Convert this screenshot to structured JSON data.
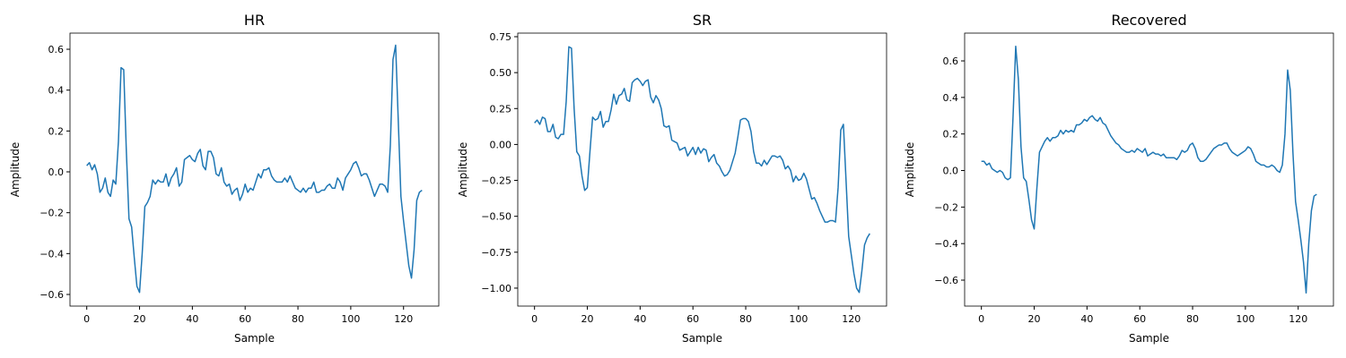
{
  "chart_data": [
    {
      "type": "line",
      "title": "HR",
      "xlabel": "Sample",
      "ylabel": "Amplitude",
      "x": [
        0,
        1,
        2,
        3,
        4,
        5,
        6,
        7,
        8,
        9,
        10,
        11,
        12,
        13,
        14,
        15,
        16,
        17,
        18,
        19,
        20,
        21,
        22,
        23,
        24,
        25,
        26,
        27,
        28,
        29,
        30,
        31,
        32,
        33,
        34,
        35,
        36,
        37,
        38,
        39,
        40,
        41,
        42,
        43,
        44,
        45,
        46,
        47,
        48,
        49,
        50,
        51,
        52,
        53,
        54,
        55,
        56,
        57,
        58,
        59,
        60,
        61,
        62,
        63,
        64,
        65,
        66,
        67,
        68,
        69,
        70,
        71,
        72,
        73,
        74,
        75,
        76,
        77,
        78,
        79,
        80,
        81,
        82,
        83,
        84,
        85,
        86,
        87,
        88,
        89,
        90,
        91,
        92,
        93,
        94,
        95,
        96,
        97,
        98,
        99,
        100,
        101,
        102,
        103,
        104,
        105,
        106,
        107,
        108,
        109,
        110,
        111,
        112,
        113,
        114,
        115,
        116,
        117,
        118,
        119,
        120,
        121,
        122,
        123,
        124,
        125,
        126,
        127
      ],
      "series": [
        {
          "color": "#1f77b4",
          "values": [
            0.03,
            0.045,
            0.01,
            0.035,
            -0.01,
            -0.1,
            -0.08,
            -0.03,
            -0.1,
            -0.12,
            -0.04,
            -0.06,
            0.15,
            0.51,
            0.5,
            0.1,
            -0.23,
            -0.27,
            -0.42,
            -0.56,
            -0.59,
            -0.4,
            -0.17,
            -0.15,
            -0.12,
            -0.04,
            -0.06,
            -0.04,
            -0.05,
            -0.05,
            -0.01,
            -0.07,
            -0.03,
            -0.01,
            0.02,
            -0.07,
            -0.05,
            0.06,
            0.07,
            0.08,
            0.06,
            0.05,
            0.09,
            0.11,
            0.03,
            0.01,
            0.1,
            0.1,
            0.07,
            -0.01,
            -0.02,
            0.02,
            -0.05,
            -0.07,
            -0.06,
            -0.11,
            -0.09,
            -0.08,
            -0.14,
            -0.11,
            -0.06,
            -0.1,
            -0.08,
            -0.09,
            -0.05,
            -0.01,
            -0.03,
            0.01,
            0.01,
            0.02,
            -0.02,
            -0.04,
            -0.05,
            -0.05,
            -0.05,
            -0.03,
            -0.05,
            -0.02,
            -0.05,
            -0.08,
            -0.09,
            -0.1,
            -0.08,
            -0.1,
            -0.08,
            -0.08,
            -0.05,
            -0.1,
            -0.1,
            -0.09,
            -0.09,
            -0.07,
            -0.06,
            -0.08,
            -0.08,
            -0.03,
            -0.05,
            -0.09,
            -0.03,
            -0.01,
            0.01,
            0.04,
            0.05,
            0.02,
            -0.02,
            -0.01,
            -0.01,
            -0.04,
            -0.08,
            -0.12,
            -0.09,
            -0.06,
            -0.06,
            -0.07,
            -0.1,
            0.13,
            0.55,
            0.62,
            0.25,
            -0.12,
            -0.24,
            -0.35,
            -0.46,
            -0.52,
            -0.38,
            -0.14,
            -0.1,
            -0.09
          ]
        }
      ],
      "xlim": [
        -6.35,
        133.35
      ],
      "ylim": [
        -0.657,
        0.679
      ],
      "xticks": [
        0,
        20,
        40,
        60,
        80,
        100,
        120
      ],
      "yticks": [
        {
          "value": -0.6,
          "label": "−0.6"
        },
        {
          "value": -0.4,
          "label": "−0.4"
        },
        {
          "value": -0.2,
          "label": "−0.2"
        },
        {
          "value": 0,
          "label": "0.0"
        },
        0.2,
        0.4,
        0.6
      ]
    },
    {
      "type": "line",
      "title": "SR",
      "xlabel": "Sample",
      "ylabel": "Amplitude",
      "x": [
        0,
        1,
        2,
        3,
        4,
        5,
        6,
        7,
        8,
        9,
        10,
        11,
        12,
        13,
        14,
        15,
        16,
        17,
        18,
        19,
        20,
        21,
        22,
        23,
        24,
        25,
        26,
        27,
        28,
        29,
        30,
        31,
        32,
        33,
        34,
        35,
        36,
        37,
        38,
        39,
        40,
        41,
        42,
        43,
        44,
        45,
        46,
        47,
        48,
        49,
        50,
        51,
        52,
        53,
        54,
        55,
        56,
        57,
        58,
        59,
        60,
        61,
        62,
        63,
        64,
        65,
        66,
        67,
        68,
        69,
        70,
        71,
        72,
        73,
        74,
        75,
        76,
        77,
        78,
        79,
        80,
        81,
        82,
        83,
        84,
        85,
        86,
        87,
        88,
        89,
        90,
        91,
        92,
        93,
        94,
        95,
        96,
        97,
        98,
        99,
        100,
        101,
        102,
        103,
        104,
        105,
        106,
        107,
        108,
        109,
        110,
        111,
        112,
        113,
        114,
        115,
        116,
        117,
        118,
        119,
        120,
        121,
        122,
        123,
        124,
        125,
        126,
        127
      ],
      "series": [
        {
          "color": "#1f77b4",
          "values": [
            0.15,
            0.17,
            0.14,
            0.19,
            0.18,
            0.09,
            0.09,
            0.14,
            0.05,
            0.04,
            0.07,
            0.07,
            0.3,
            0.68,
            0.67,
            0.25,
            -0.05,
            -0.08,
            -0.22,
            -0.32,
            -0.3,
            -0.05,
            0.19,
            0.17,
            0.18,
            0.23,
            0.12,
            0.16,
            0.16,
            0.24,
            0.35,
            0.28,
            0.34,
            0.35,
            0.39,
            0.31,
            0.3,
            0.43,
            0.45,
            0.46,
            0.44,
            0.41,
            0.44,
            0.45,
            0.33,
            0.29,
            0.34,
            0.31,
            0.25,
            0.13,
            0.12,
            0.13,
            0.03,
            0.02,
            0.01,
            -0.04,
            -0.03,
            -0.02,
            -0.08,
            -0.05,
            -0.02,
            -0.07,
            -0.02,
            -0.06,
            -0.03,
            -0.04,
            -0.12,
            -0.09,
            -0.07,
            -0.13,
            -0.15,
            -0.19,
            -0.22,
            -0.21,
            -0.18,
            -0.12,
            -0.06,
            0.05,
            0.17,
            0.18,
            0.18,
            0.16,
            0.09,
            -0.05,
            -0.13,
            -0.13,
            -0.15,
            -0.11,
            -0.14,
            -0.11,
            -0.08,
            -0.08,
            -0.09,
            -0.08,
            -0.11,
            -0.17,
            -0.15,
            -0.18,
            -0.26,
            -0.22,
            -0.25,
            -0.24,
            -0.2,
            -0.24,
            -0.31,
            -0.38,
            -0.37,
            -0.41,
            -0.46,
            -0.5,
            -0.54,
            -0.54,
            -0.53,
            -0.53,
            -0.54,
            -0.3,
            0.1,
            0.14,
            -0.25,
            -0.64,
            -0.77,
            -0.9,
            -1.0,
            -1.03,
            -0.88,
            -0.7,
            -0.65,
            -0.62
          ]
        }
      ],
      "xlim": [
        -6.35,
        133.35
      ],
      "ylim": [
        -1.125,
        0.775
      ],
      "xticks": [
        0,
        20,
        40,
        60,
        80,
        100,
        120
      ],
      "yticks": [
        {
          "value": -1,
          "label": "−1.00"
        },
        {
          "value": -0.75,
          "label": "−0.75"
        },
        {
          "value": -0.5,
          "label": "−0.50"
        },
        {
          "value": -0.25,
          "label": "−0.25"
        },
        {
          "value": 0,
          "label": "0.00"
        },
        0.25,
        {
          "value": 0.5,
          "label": "0.50"
        },
        0.75
      ]
    },
    {
      "type": "line",
      "title": "Recovered",
      "xlabel": "Sample",
      "ylabel": "Amplitude",
      "x": [
        0,
        1,
        2,
        3,
        4,
        5,
        6,
        7,
        8,
        9,
        10,
        11,
        12,
        13,
        14,
        15,
        16,
        17,
        18,
        19,
        20,
        21,
        22,
        23,
        24,
        25,
        26,
        27,
        28,
        29,
        30,
        31,
        32,
        33,
        34,
        35,
        36,
        37,
        38,
        39,
        40,
        41,
        42,
        43,
        44,
        45,
        46,
        47,
        48,
        49,
        50,
        51,
        52,
        53,
        54,
        55,
        56,
        57,
        58,
        59,
        60,
        61,
        62,
        63,
        64,
        65,
        66,
        67,
        68,
        69,
        70,
        71,
        72,
        73,
        74,
        75,
        76,
        77,
        78,
        79,
        80,
        81,
        82,
        83,
        84,
        85,
        86,
        87,
        88,
        89,
        90,
        91,
        92,
        93,
        94,
        95,
        96,
        97,
        98,
        99,
        100,
        101,
        102,
        103,
        104,
        105,
        106,
        107,
        108,
        109,
        110,
        111,
        112,
        113,
        114,
        115,
        116,
        117,
        118,
        119,
        120,
        121,
        122,
        123,
        124,
        125,
        126,
        127
      ],
      "series": [
        {
          "color": "#1f77b4",
          "values": [
            0.05,
            0.05,
            0.03,
            0.04,
            0.01,
            0.0,
            -0.01,
            0.0,
            -0.01,
            -0.04,
            -0.05,
            -0.04,
            0.3,
            0.68,
            0.5,
            0.13,
            -0.04,
            -0.06,
            -0.16,
            -0.27,
            -0.32,
            -0.1,
            0.1,
            0.13,
            0.16,
            0.18,
            0.16,
            0.18,
            0.18,
            0.19,
            0.22,
            0.2,
            0.22,
            0.21,
            0.22,
            0.21,
            0.25,
            0.25,
            0.26,
            0.28,
            0.27,
            0.29,
            0.3,
            0.28,
            0.27,
            0.29,
            0.26,
            0.25,
            0.22,
            0.19,
            0.17,
            0.15,
            0.14,
            0.12,
            0.11,
            0.1,
            0.1,
            0.11,
            0.1,
            0.12,
            0.11,
            0.1,
            0.12,
            0.08,
            0.09,
            0.1,
            0.09,
            0.09,
            0.08,
            0.09,
            0.07,
            0.07,
            0.07,
            0.07,
            0.06,
            0.08,
            0.11,
            0.1,
            0.11,
            0.14,
            0.15,
            0.12,
            0.07,
            0.05,
            0.05,
            0.06,
            0.08,
            0.1,
            0.12,
            0.13,
            0.14,
            0.14,
            0.15,
            0.15,
            0.12,
            0.1,
            0.09,
            0.08,
            0.09,
            0.1,
            0.11,
            0.13,
            0.12,
            0.09,
            0.05,
            0.04,
            0.03,
            0.03,
            0.02,
            0.02,
            0.03,
            0.02,
            0.0,
            -0.01,
            0.03,
            0.2,
            0.55,
            0.44,
            0.1,
            -0.17,
            -0.27,
            -0.38,
            -0.5,
            -0.67,
            -0.4,
            -0.22,
            -0.14,
            -0.13
          ]
        }
      ],
      "xlim": [
        -6.35,
        133.35
      ],
      "ylim": [
        -0.742,
        0.752
      ],
      "xticks": [
        0,
        20,
        40,
        60,
        80,
        100,
        120
      ],
      "yticks": [
        {
          "value": -0.6,
          "label": "−0.6"
        },
        {
          "value": -0.4,
          "label": "−0.4"
        },
        {
          "value": -0.2,
          "label": "−0.2"
        },
        {
          "value": 0,
          "label": "0.0"
        },
        0.2,
        0.4,
        0.6
      ]
    }
  ]
}
